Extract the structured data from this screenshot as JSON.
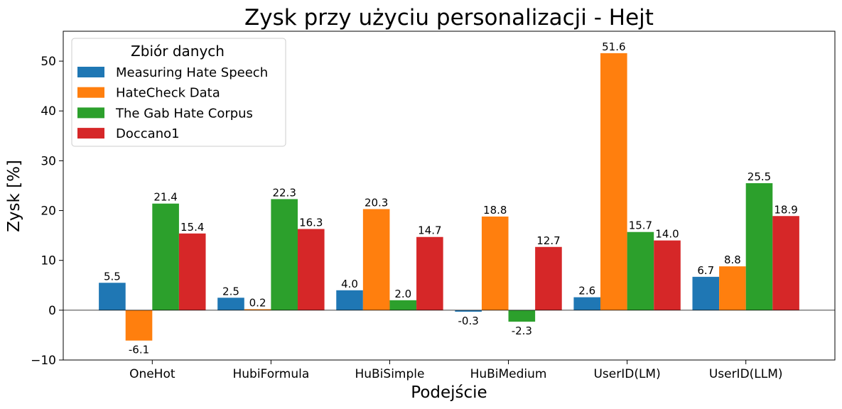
{
  "chart_data": {
    "type": "bar",
    "title": "Zysk przy użyciu personalizacji - Hejt",
    "xlabel": "Podejście",
    "ylabel": "Zysk [%]",
    "ylim": [
      -10,
      56
    ],
    "yticks": [
      -10,
      0,
      10,
      20,
      30,
      40,
      50
    ],
    "categories": [
      "OneHot",
      "HubiFormula",
      "HuBiSimple",
      "HuBiMedium",
      "UserID(LM)",
      "UserID(LLM)"
    ],
    "legend": {
      "title": "Zbiór danych",
      "placement": "top-left"
    },
    "grid": false,
    "series": [
      {
        "name": "Measuring Hate Speech",
        "color": "#1f77b4",
        "values": [
          5.5,
          2.5,
          4.0,
          -0.3,
          2.6,
          6.7
        ]
      },
      {
        "name": "HateCheck Data",
        "color": "#ff7f0e",
        "values": [
          -6.1,
          0.2,
          20.3,
          18.8,
          51.6,
          8.8
        ]
      },
      {
        "name": "The Gab Hate Corpus",
        "color": "#2ca02c",
        "values": [
          21.4,
          22.3,
          2.0,
          -2.3,
          15.7,
          25.5
        ]
      },
      {
        "name": "Doccano1",
        "color": "#d62728",
        "values": [
          15.4,
          16.3,
          14.7,
          12.7,
          14.0,
          18.9
        ]
      }
    ]
  }
}
